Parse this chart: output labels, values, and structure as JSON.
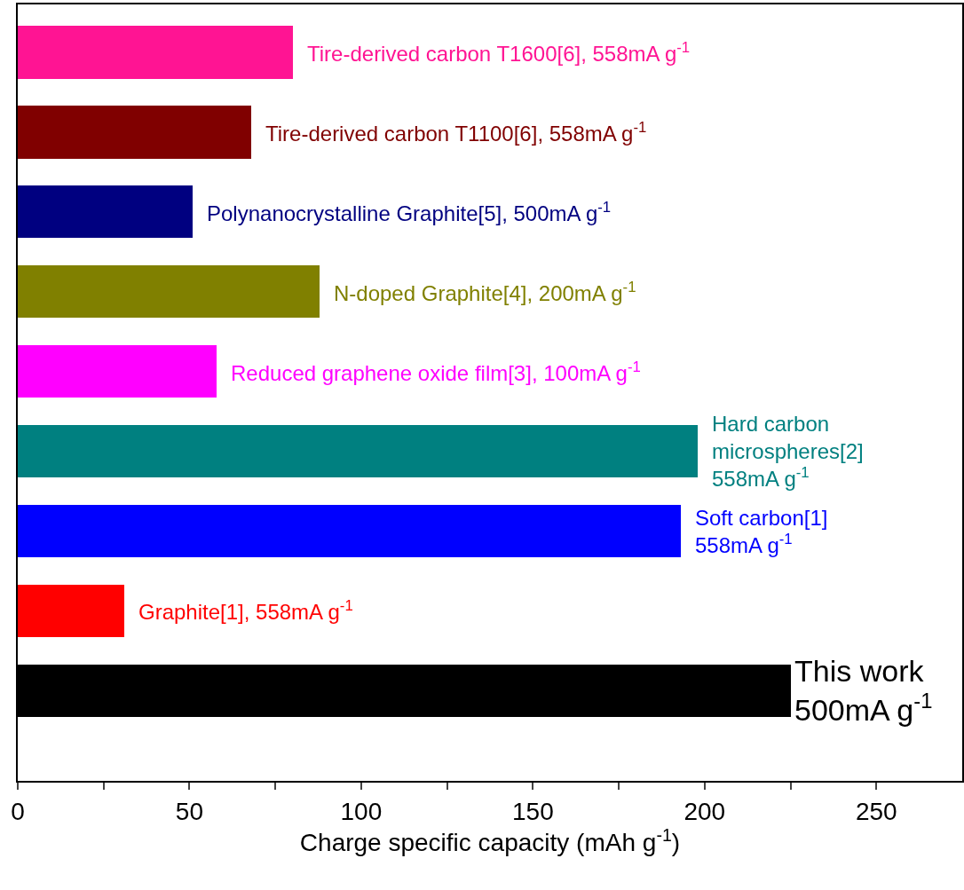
{
  "chart_data": {
    "type": "bar",
    "orientation": "horizontal",
    "stacked": true,
    "xlabel": "Charge specific capacity (mAh g$^{-1}$)",
    "categories": [
      null,
      null,
      null,
      null,
      null,
      null,
      null,
      null,
      null
    ],
    "series": [
      {
        "name": "Tire-derived carbon T1600[6], 558mA g$^{-1}$",
        "color": "#ff1493",
        "values": [
          80,
          null,
          null,
          null,
          null,
          null,
          null,
          null,
          null
        ]
      },
      {
        "name": "Tire-derived carbon T1100[6], 558mA g$^{-1}$",
        "color": "#800000",
        "values": [
          null,
          68,
          null,
          null,
          null,
          null,
          null,
          null,
          null
        ]
      },
      {
        "name": "Polynanocrystalline Graphite[5], 500mA g$^{-1}$",
        "color": "#000080",
        "values": [
          null,
          null,
          51,
          null,
          null,
          null,
          null,
          null,
          null
        ]
      },
      {
        "name": "N-doped Graphite[4], 200mA g$^{-1}$",
        "color": "#808000",
        "values": [
          null,
          null,
          null,
          88,
          null,
          null,
          null,
          null,
          null
        ]
      },
      {
        "name": "Reduced graphene oxide film[3], 100mA g$^{-1}$",
        "color": "#ff00ff",
        "values": [
          null,
          null,
          null,
          null,
          58,
          null,
          null,
          null,
          null
        ]
      },
      {
        "name": "Hard carbon\nmicrospheres[2]\n558mA g$^{-1}$",
        "color": "#008080",
        "values": [
          null,
          null,
          null,
          null,
          null,
          198,
          null,
          null,
          null
        ]
      },
      {
        "name": "Soft carbon[1]\n558mA g$^{-1}$",
        "color": "#0000ff",
        "values": [
          null,
          null,
          null,
          null,
          null,
          null,
          193,
          null,
          null
        ]
      },
      {
        "name": "Graphite[1], 558mA g$^{-1}$",
        "color": "#ff0000",
        "values": [
          null,
          null,
          null,
          null,
          null,
          null,
          null,
          31,
          null
        ]
      },
      {
        "name": "This work\n500mA g$^{-1}$",
        "color": "#000000",
        "values": [
          null,
          null,
          null,
          null,
          null,
          null,
          null,
          null,
          225
        ]
      }
    ],
    "xlim": [
      0,
      275
    ],
    "xticks": [
      0,
      {
        "value": 25,
        "label": null
      },
      50,
      {
        "value": 75,
        "label": null
      },
      100,
      {
        "value": 125,
        "label": null
      },
      150,
      {
        "value": 175,
        "label": null
      },
      200,
      {
        "value": 225,
        "label": null
      },
      250
    ],
    "tick_labels": "x",
    "grid": false,
    "legend": false
  }
}
